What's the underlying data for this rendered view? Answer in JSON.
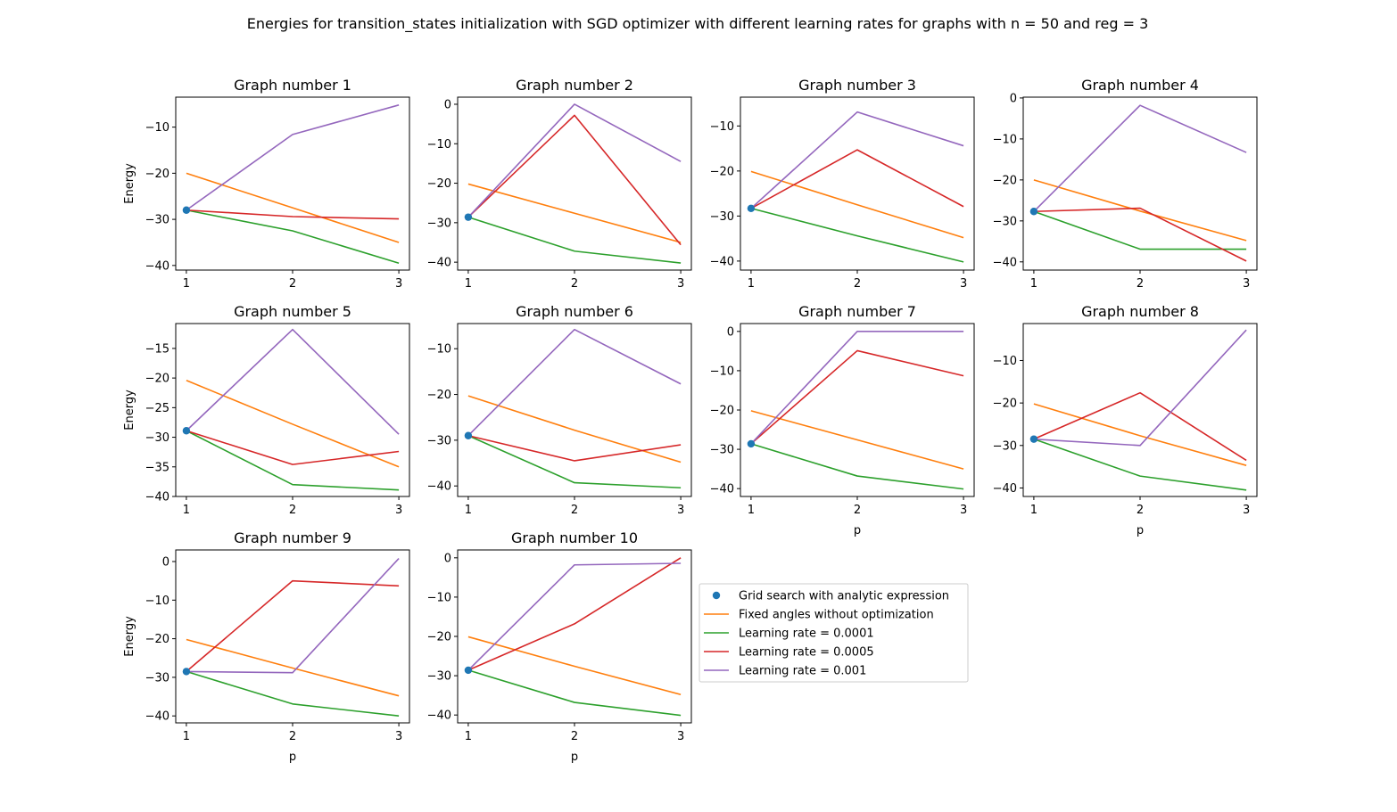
{
  "chart_data": {
    "type": "line",
    "title": "Energies for transition_states initialization with SGD optimizer with different learning rates for graphs with n = 50 and reg = 3",
    "xlabel": "p",
    "ylabel": "Energy",
    "x": [
      1,
      2,
      3
    ],
    "legend": {
      "placement": "right of Graph number 10",
      "entries": [
        {
          "label": "Grid search with analytic expression",
          "marker": "point",
          "color": "#1f77b4"
        },
        {
          "label": "Fixed angles without optimization",
          "marker": "line",
          "color": "#ff7f0e"
        },
        {
          "label": "Learning rate = 0.0001",
          "marker": "line",
          "color": "#2ca02c"
        },
        {
          "label": "Learning rate = 0.0005",
          "marker": "line",
          "color": "#d62728"
        },
        {
          "label": "Learning rate = 0.001",
          "marker": "line",
          "color": "#9467bd"
        }
      ]
    },
    "colors": {
      "grid_search": "#1f77b4",
      "fixed": "#ff7f0e",
      "lr1": "#2ca02c",
      "lr2": "#d62728",
      "lr3": "#9467bd"
    },
    "subplots": [
      {
        "title": "Graph number 1",
        "ylim": [
          -41,
          -3.5
        ],
        "yticks": [
          -10,
          -20,
          -30,
          -40
        ],
        "grid_search": -28,
        "fixed": [
          -20,
          -27.5,
          -35
        ],
        "lr1": [
          -28,
          -32.5,
          -39.5
        ],
        "lr2": [
          -28,
          -29.4,
          -29.9
        ],
        "lr3": [
          -28,
          -11.6,
          -5.2
        ]
      },
      {
        "title": "Graph number 2",
        "ylim": [
          -42,
          1.8
        ],
        "yticks": [
          0,
          -10,
          -20,
          -30,
          -40
        ],
        "grid_search": -28.6,
        "fixed": [
          -20.2,
          -27.6,
          -35
        ],
        "lr1": [
          -28.6,
          -37.2,
          -40.2
        ],
        "lr2": [
          -28.6,
          -2.8,
          -35.6
        ],
        "lr3": [
          -28.6,
          0,
          -14.5
        ]
      },
      {
        "title": "Graph number 3",
        "ylim": [
          -42,
          -3.6
        ],
        "yticks": [
          -10,
          -20,
          -30,
          -40
        ],
        "grid_search": -28.3,
        "fixed": [
          -20.1,
          -27.5,
          -34.8
        ],
        "lr1": [
          -28.3,
          -34.4,
          -40.2
        ],
        "lr2": [
          -28.3,
          -15.3,
          -27.9
        ],
        "lr3": [
          -28.3,
          -6.9,
          -14.4
        ]
      },
      {
        "title": "Graph number 4",
        "ylim": [
          -42,
          0.2
        ],
        "yticks": [
          0,
          -10,
          -20,
          -30,
          -40
        ],
        "grid_search": -27.7,
        "fixed": [
          -20,
          -27.6,
          -34.8
        ],
        "lr1": [
          -27.7,
          -36.9,
          -36.9
        ],
        "lr2": [
          -27.7,
          -26.9,
          -39.8
        ],
        "lr3": [
          -27.7,
          -1.8,
          -13.3
        ]
      },
      {
        "title": "Graph number 5",
        "ylim": [
          -40,
          -10.8
        ],
        "yticks": [
          -15,
          -20,
          -25,
          -30,
          -35,
          -40
        ],
        "grid_search": -28.9,
        "fixed": [
          -20.4,
          -27.8,
          -35
        ],
        "lr1": [
          -28.9,
          -38,
          -38.9
        ],
        "lr2": [
          -28.9,
          -34.6,
          -32.4
        ],
        "lr3": [
          -28.9,
          -11.8,
          -29.5
        ]
      },
      {
        "title": "Graph number 6",
        "ylim": [
          -42.3,
          -4.5
        ],
        "yticks": [
          -10,
          -20,
          -30,
          -40
        ],
        "grid_search": -29,
        "fixed": [
          -20.3,
          -27.8,
          -34.8
        ],
        "lr1": [
          -29,
          -39.3,
          -40.4
        ],
        "lr2": [
          -29,
          -34.5,
          -31
        ],
        "lr3": [
          -29,
          -5.8,
          -17.7
        ]
      },
      {
        "title": "Graph number 7",
        "ylim": [
          -42,
          2
        ],
        "yticks": [
          0,
          -10,
          -20,
          -30,
          -40
        ],
        "grid_search": -28.6,
        "fixed": [
          -20.2,
          -27.6,
          -35
        ],
        "lr1": [
          -28.6,
          -36.8,
          -40.1
        ],
        "lr2": [
          -28.6,
          -4.9,
          -11.3
        ],
        "lr3": [
          -28.6,
          0,
          0
        ]
      },
      {
        "title": "Graph number 8",
        "ylim": [
          -42,
          -1.3
        ],
        "yticks": [
          -10,
          -20,
          -30,
          -40
        ],
        "grid_search": -28.5,
        "fixed": [
          -20.2,
          -27.7,
          -34.7
        ],
        "lr1": [
          -28.5,
          -37.2,
          -40.5
        ],
        "lr2": [
          -28.5,
          -17.6,
          -33.5
        ],
        "lr3": [
          -28.5,
          -30,
          -2.8
        ]
      },
      {
        "title": "Graph number 9",
        "ylim": [
          -41.8,
          3
        ],
        "yticks": [
          0,
          -10,
          -20,
          -30,
          -40
        ],
        "grid_search": -28.5,
        "fixed": [
          -20.2,
          -27.6,
          -34.8
        ],
        "lr1": [
          -28.5,
          -36.9,
          -40
        ],
        "lr2": [
          -28.5,
          -5,
          -6.3
        ],
        "lr3": [
          -28.5,
          -28.8,
          0.8
        ]
      },
      {
        "title": "Graph number 10",
        "ylim": [
          -42,
          2
        ],
        "yticks": [
          0,
          -10,
          -20,
          -30,
          -40
        ],
        "grid_search": -28.6,
        "fixed": [
          -20.1,
          -27.6,
          -34.8
        ],
        "lr1": [
          -28.6,
          -36.8,
          -40.1
        ],
        "lr2": [
          -28.6,
          -16.8,
          0
        ],
        "lr3": [
          -28.6,
          -1.8,
          -1.4
        ]
      }
    ]
  }
}
